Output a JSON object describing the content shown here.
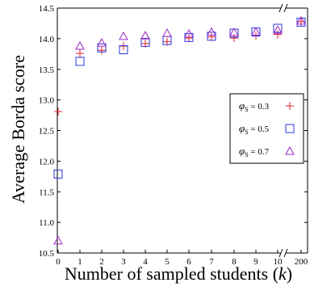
{
  "chart_data": {
    "type": "scatter",
    "title": "",
    "xlabel": "Number of sampled students (k)",
    "ylabel": "Average Borda score",
    "x_categories": [
      "0",
      "1",
      "2",
      "3",
      "4",
      "5",
      "6",
      "7",
      "8",
      "9",
      "10",
      "200"
    ],
    "y_ticks": [
      "10.5",
      "11.0",
      "11.5",
      "12.0",
      "12.5",
      "13.0",
      "13.5",
      "14.0",
      "14.5"
    ],
    "ylim": [
      10.5,
      14.5
    ],
    "grid": false,
    "axis_break": "between 10 and 200",
    "legend_position": "right-middle",
    "series": [
      {
        "name": "φS = 0.3",
        "legend_symbol": "φ",
        "legend_subscript": "S",
        "legend_value": " = 0.3",
        "marker": "plus",
        "color": "#e8202a",
        "values": [
          12.81,
          13.76,
          13.81,
          13.88,
          13.92,
          13.95,
          14.01,
          14.03,
          14.01,
          14.05,
          14.07,
          14.28
        ]
      },
      {
        "name": "φS = 0.5",
        "legend_symbol": "φ",
        "legend_subscript": "S",
        "legend_value": " = 0.5",
        "marker": "square",
        "color": "#2b35e0",
        "values": [
          11.79,
          13.63,
          13.85,
          13.82,
          13.94,
          13.97,
          14.02,
          14.04,
          14.09,
          14.11,
          14.17,
          14.27
        ]
      },
      {
        "name": "φS = 0.7",
        "legend_symbol": "φ",
        "legend_subscript": "S",
        "legend_value": " = 0.7",
        "marker": "triangle",
        "color": "#9b27c4",
        "values": [
          10.7,
          13.88,
          13.93,
          14.04,
          14.05,
          14.09,
          14.08,
          14.11,
          14.1,
          14.11,
          14.14,
          14.29
        ]
      }
    ]
  }
}
